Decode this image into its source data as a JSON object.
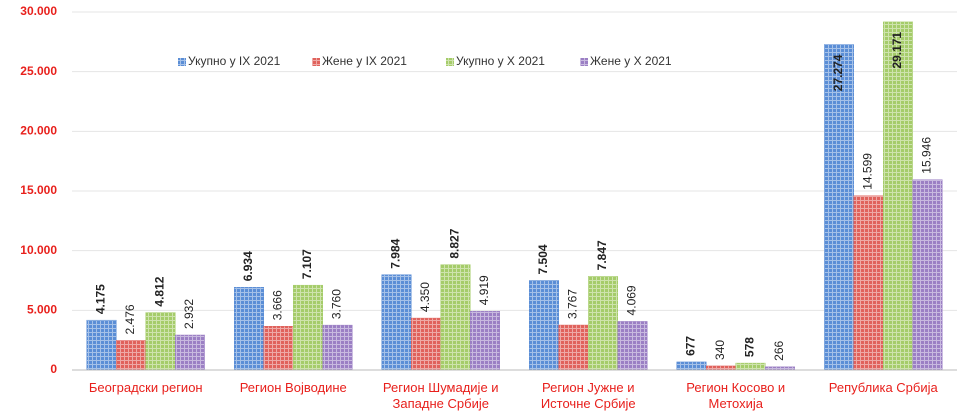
{
  "chart_data": {
    "type": "bar",
    "categories": [
      "Београдски регион",
      "Регион Војводине",
      "Регион Шумадије и Западне Србије",
      "Регион Јужне и Источне Србије",
      "Регион Косово и Метохија",
      "Република Србија"
    ],
    "series": [
      {
        "name": "Укупно у IX 2021",
        "color": "#5b8ed6",
        "values": [
          4175,
          6934,
          7984,
          7504,
          677,
          27274
        ],
        "value_labels": [
          "4.175",
          "6.934",
          "7.984",
          "7.504",
          "677",
          "27.274"
        ]
      },
      {
        "name": "Жене у IX 2021",
        "color": "#e0625c",
        "values": [
          2476,
          3666,
          4350,
          3767,
          340,
          14599
        ],
        "value_labels": [
          "2.476",
          "3.666",
          "4.350",
          "3.767",
          "340",
          "14.599"
        ]
      },
      {
        "name": "Укупно у X 2021",
        "color": "#a5cc6a",
        "values": [
          4812,
          7107,
          8827,
          7847,
          578,
          29171
        ],
        "value_labels": [
          "4.812",
          "7.107",
          "8.827",
          "7.847",
          "578",
          "29.171"
        ]
      },
      {
        "name": "Жене у X 2021",
        "color": "#9b7fc4",
        "values": [
          2932,
          3760,
          4919,
          4069,
          266,
          15946
        ],
        "value_labels": [
          "2.932",
          "3.760",
          "4.919",
          "4.069",
          "266",
          "15.946"
        ]
      }
    ],
    "ylim": [
      0,
      30000
    ],
    "yticks": [
      0,
      {
        "value": 5000,
        "label": "5.000"
      },
      {
        "value": 10000,
        "label": "10.000"
      },
      {
        "value": 15000,
        "label": "15.000"
      },
      {
        "value": 20000,
        "label": "20.000"
      },
      {
        "value": 25000,
        "label": "25.000"
      },
      {
        "value": 30000,
        "label": "30.000"
      }
    ],
    "grid": true
  }
}
